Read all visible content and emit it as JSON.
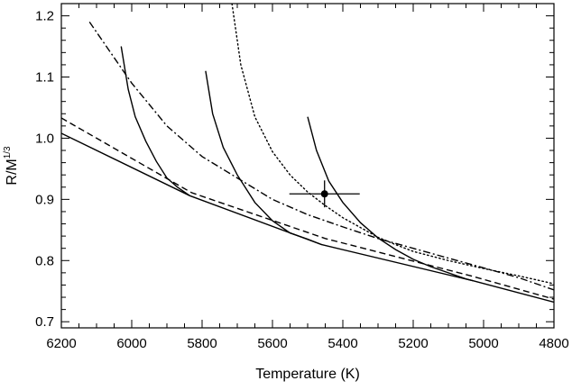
{
  "chart_data": {
    "type": "line",
    "title": "",
    "xlabel": "Temperature (K)",
    "ylabel_main": "R/M",
    "ylabel_sup": "1/3",
    "xlim": [
      6200,
      4800
    ],
    "ylim": [
      0.69,
      1.22
    ],
    "x_reversed": true,
    "grid": false,
    "legend": "none",
    "xticks": [
      {
        "value": 6200,
        "label": "6200"
      },
      {
        "value": 6000,
        "label": "6000"
      },
      {
        "value": 5800,
        "label": "5800"
      },
      {
        "value": 5600,
        "label": "5600"
      },
      {
        "value": 5400,
        "label": "5400"
      },
      {
        "value": 5200,
        "label": "5200"
      },
      {
        "value": 5000,
        "label": "5000"
      },
      {
        "value": 4800,
        "label": "4800"
      }
    ],
    "yticks": [
      {
        "value": 0.7,
        "label": "0.7"
      },
      {
        "value": 0.8,
        "label": "0.8"
      },
      {
        "value": 0.9,
        "label": "0.9"
      },
      {
        "value": 1.0,
        "label": "1.0"
      },
      {
        "value": 1.1,
        "label": "1.1"
      },
      {
        "value": 1.2,
        "label": "1.2"
      }
    ],
    "series": [
      {
        "style": "solid",
        "x": [
          6200,
          5835,
          5460,
          5030,
          4800
        ],
        "y": [
          1.008,
          0.906,
          0.826,
          0.767,
          0.732
        ]
      },
      {
        "style": "dashed",
        "x": [
          6200,
          5830,
          5450,
          5030,
          4800
        ],
        "y": [
          1.033,
          0.911,
          0.836,
          0.774,
          0.737
        ]
      },
      {
        "style": "dashdot",
        "x": [
          6120,
          6000,
          5900,
          5800,
          5700,
          5600,
          5500,
          5400,
          5300,
          5200,
          5100,
          5000,
          4900,
          4800
        ],
        "y": [
          1.19,
          1.09,
          1.02,
          0.97,
          0.935,
          0.9,
          0.875,
          0.855,
          0.836,
          0.82,
          0.804,
          0.788,
          0.772,
          0.752
        ]
      },
      {
        "style": "dotted",
        "x": [
          5715,
          5690,
          5650,
          5600,
          5550,
          5500,
          5450,
          5400,
          5350,
          5300,
          5250,
          5200,
          5100,
          5000,
          4900,
          4800
        ],
        "y": [
          1.22,
          1.12,
          1.035,
          0.978,
          0.94,
          0.912,
          0.89,
          0.87,
          0.854,
          0.838,
          0.826,
          0.815,
          0.8,
          0.787,
          0.775,
          0.762
        ]
      },
      {
        "style": "solid",
        "x": [
          6030,
          6010,
          5990,
          5960,
          5930,
          5900,
          5870,
          5835
        ],
        "y": [
          1.15,
          1.08,
          1.035,
          0.995,
          0.962,
          0.935,
          0.92,
          0.906
        ]
      },
      {
        "style": "solid",
        "x": [
          5790,
          5770,
          5740,
          5700,
          5650,
          5600,
          5550,
          5500,
          5460
        ],
        "y": [
          1.11,
          1.04,
          0.985,
          0.94,
          0.895,
          0.865,
          0.845,
          0.835,
          0.826
        ]
      },
      {
        "style": "solid",
        "x": [
          5500,
          5475,
          5440,
          5400,
          5350,
          5300,
          5250,
          5200,
          5150,
          5100,
          5050,
          5030
        ],
        "y": [
          1.035,
          0.98,
          0.93,
          0.895,
          0.862,
          0.837,
          0.818,
          0.802,
          0.79,
          0.78,
          0.77,
          0.767
        ]
      }
    ],
    "point": {
      "x": 5452,
      "y": 0.909,
      "xerr": 100,
      "yerr": 0.022
    }
  }
}
